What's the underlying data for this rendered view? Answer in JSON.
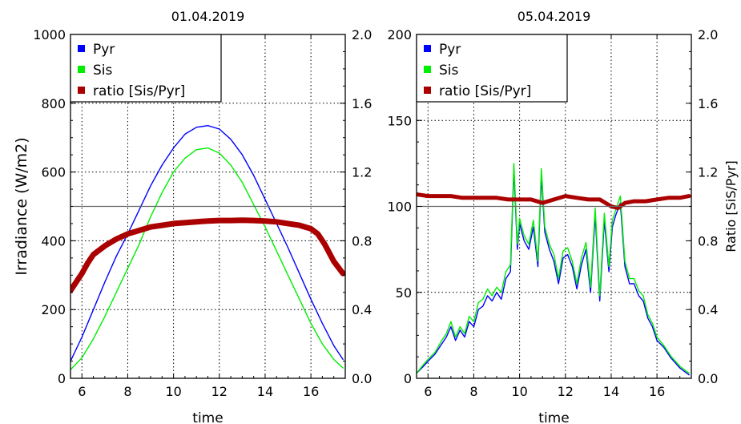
{
  "chart_data": [
    {
      "type": "line",
      "title": "01.04.2019",
      "xlabel": "time",
      "ylabel": "Irradiance (W/m2)",
      "y2label": "",
      "xlim": [
        5.5,
        17.5
      ],
      "ylim": [
        0,
        1000
      ],
      "y2lim": [
        0,
        2.0
      ],
      "xticks": [
        6,
        8,
        10,
        12,
        14,
        16
      ],
      "yticks": [
        0,
        200,
        400,
        600,
        800,
        1000
      ],
      "y2ticks": [
        "0.0",
        "0.4",
        "0.8",
        "1.2",
        "1.6",
        "2.0"
      ],
      "grid": true,
      "legend": "top-left",
      "reference_line_y2": 1.0,
      "series": [
        {
          "name": "Pyr",
          "axis": "left",
          "color": "#0000ff",
          "x": [
            5.5,
            6,
            6.5,
            7,
            7.5,
            8,
            8.5,
            9,
            9.5,
            10,
            10.5,
            11,
            11.5,
            12,
            12.5,
            13,
            13.5,
            14,
            14.5,
            15,
            15.5,
            16,
            16.5,
            17,
            17.4
          ],
          "y": [
            50,
            120,
            200,
            280,
            355,
            420,
            490,
            560,
            620,
            670,
            710,
            730,
            735,
            725,
            695,
            650,
            590,
            520,
            450,
            380,
            305,
            230,
            160,
            95,
            55
          ]
        },
        {
          "name": "Sis",
          "axis": "left",
          "color": "#00ee00",
          "x": [
            5.5,
            6,
            6.5,
            7,
            7.5,
            8,
            8.5,
            9,
            9.5,
            10,
            10.5,
            11,
            11.5,
            12,
            12.5,
            13,
            13.5,
            14,
            14.5,
            15,
            15.5,
            16,
            16.5,
            17,
            17.4
          ],
          "y": [
            25,
            60,
            115,
            180,
            250,
            320,
            390,
            470,
            540,
            600,
            640,
            665,
            670,
            655,
            620,
            570,
            505,
            440,
            370,
            300,
            230,
            160,
            100,
            55,
            30
          ]
        },
        {
          "name": "ratio [Sis/Pyr]",
          "axis": "right",
          "color": "#aa0000",
          "x": [
            5.5,
            5.75,
            6,
            6.25,
            6.5,
            7,
            7.5,
            8,
            8.5,
            9,
            9.5,
            10,
            10.5,
            11,
            11.5,
            12,
            12.5,
            13,
            13.5,
            14,
            14.5,
            15,
            15.5,
            16,
            16.3,
            16.6,
            17,
            17.4
          ],
          "y": [
            0.51,
            0.56,
            0.61,
            0.67,
            0.72,
            0.77,
            0.81,
            0.84,
            0.86,
            0.88,
            0.89,
            0.9,
            0.905,
            0.91,
            0.915,
            0.918,
            0.918,
            0.92,
            0.918,
            0.915,
            0.91,
            0.9,
            0.89,
            0.87,
            0.84,
            0.78,
            0.68,
            0.61
          ]
        }
      ]
    },
    {
      "type": "line",
      "title": "05.04.2019",
      "xlabel": "time",
      "ylabel": "",
      "y2label": "Ratio [SiS/Pyr]",
      "xlim": [
        5.5,
        17.5
      ],
      "ylim": [
        0,
        200
      ],
      "y2lim": [
        0,
        2.0
      ],
      "xticks": [
        6,
        8,
        10,
        12,
        14,
        16
      ],
      "yticks": [
        0,
        50,
        100,
        150,
        200
      ],
      "y2ticks": [
        "0.0",
        "0.4",
        "0.8",
        "1.2",
        "1.6",
        "2.0"
      ],
      "grid": true,
      "legend": "top-left",
      "reference_line_y2": 1.0,
      "series": [
        {
          "name": "Pyr",
          "axis": "left",
          "color": "#0000ff",
          "x": [
            5.5,
            5.8,
            6,
            6.3,
            6.6,
            6.8,
            7,
            7.2,
            7.4,
            7.6,
            7.8,
            8,
            8.2,
            8.4,
            8.6,
            8.8,
            9,
            9.2,
            9.4,
            9.6,
            9.75,
            9.9,
            10,
            10.2,
            10.4,
            10.6,
            10.8,
            10.95,
            11.1,
            11.3,
            11.5,
            11.7,
            11.9,
            12.1,
            12.3,
            12.5,
            12.7,
            12.9,
            13.1,
            13.3,
            13.5,
            13.7,
            13.9,
            14.05,
            14.2,
            14.4,
            14.6,
            14.8,
            15,
            15.2,
            15.4,
            15.6,
            15.8,
            16,
            16.3,
            16.6,
            17,
            17.4
          ],
          "y": [
            3,
            7,
            10,
            14,
            20,
            24,
            30,
            22,
            28,
            24,
            33,
            30,
            40,
            42,
            48,
            45,
            50,
            46,
            58,
            62,
            122,
            75,
            90,
            80,
            75,
            88,
            65,
            118,
            85,
            75,
            68,
            55,
            70,
            72,
            65,
            52,
            66,
            75,
            50,
            95,
            45,
            92,
            62,
            88,
            95,
            102,
            65,
            55,
            55,
            48,
            45,
            35,
            30,
            22,
            18,
            12,
            6,
            2
          ]
        },
        {
          "name": "Sis",
          "axis": "left",
          "color": "#00ee00",
          "x": [
            5.5,
            5.8,
            6,
            6.3,
            6.6,
            6.8,
            7,
            7.2,
            7.4,
            7.6,
            7.8,
            8,
            8.2,
            8.4,
            8.6,
            8.8,
            9,
            9.2,
            9.4,
            9.6,
            9.75,
            9.9,
            10,
            10.2,
            10.4,
            10.6,
            10.8,
            10.95,
            11.1,
            11.3,
            11.5,
            11.7,
            11.9,
            12.1,
            12.3,
            12.5,
            12.7,
            12.9,
            13.1,
            13.3,
            13.5,
            13.7,
            13.9,
            14.05,
            14.2,
            14.4,
            14.6,
            14.8,
            15,
            15.2,
            15.4,
            15.6,
            15.8,
            16,
            16.3,
            16.6,
            17,
            17.4
          ],
          "y": [
            3,
            8,
            11,
            15,
            22,
            26,
            33,
            24,
            30,
            26,
            36,
            33,
            44,
            46,
            52,
            48,
            53,
            50,
            62,
            66,
            125,
            78,
            93,
            83,
            78,
            92,
            68,
            122,
            88,
            78,
            72,
            58,
            74,
            76,
            68,
            55,
            70,
            79,
            53,
            99,
            48,
            96,
            65,
            92,
            98,
            106,
            68,
            58,
            58,
            51,
            48,
            37,
            32,
            24,
            19,
            13,
            7,
            3
          ]
        },
        {
          "name": "ratio [Sis/Pyr]",
          "axis": "right",
          "color": "#aa0000",
          "x": [
            5.5,
            6,
            6.5,
            7,
            7.5,
            8,
            8.5,
            9,
            9.5,
            10,
            10.5,
            11,
            11.5,
            12,
            12.5,
            13,
            13.5,
            14,
            14.3,
            14.6,
            15,
            15.5,
            16,
            16.5,
            17,
            17.4
          ],
          "y": [
            1.07,
            1.06,
            1.06,
            1.06,
            1.05,
            1.05,
            1.05,
            1.05,
            1.04,
            1.04,
            1.04,
            1.02,
            1.04,
            1.06,
            1.05,
            1.04,
            1.04,
            1.0,
            0.99,
            1.02,
            1.03,
            1.03,
            1.04,
            1.05,
            1.05,
            1.06
          ]
        }
      ]
    }
  ]
}
